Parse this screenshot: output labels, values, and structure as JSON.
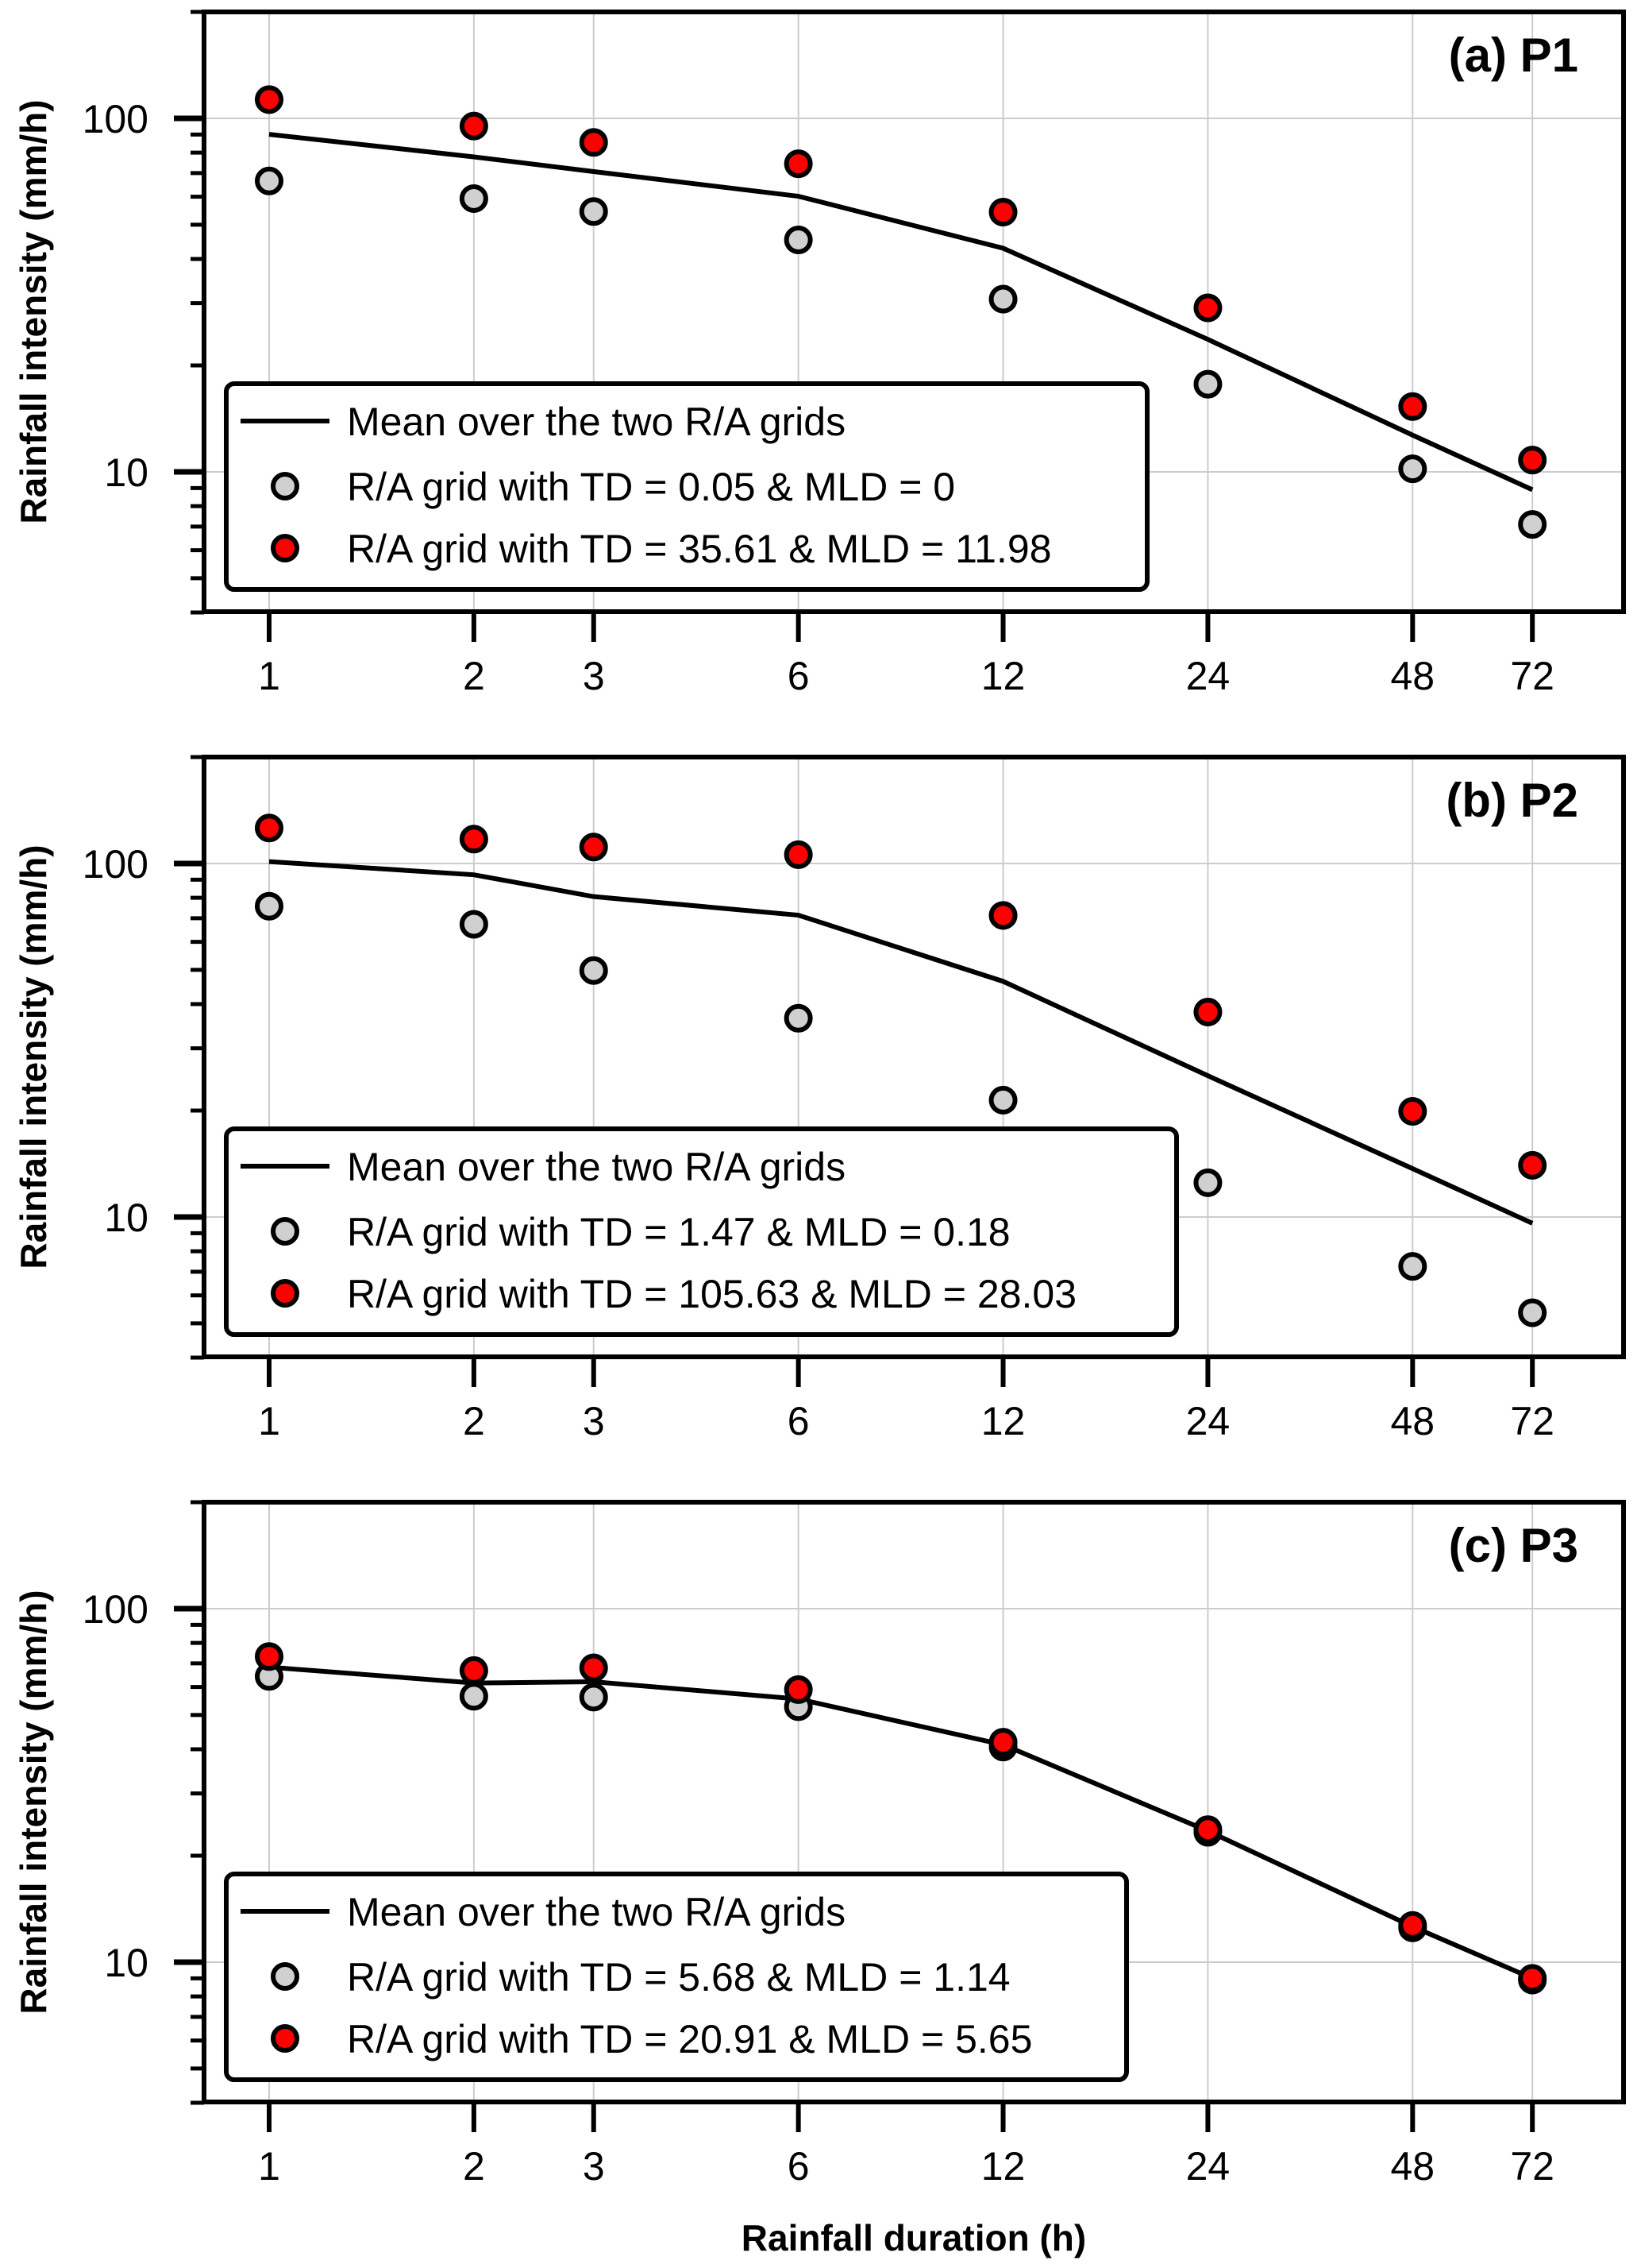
{
  "figure": {
    "xlabel": "Rainfall duration (h)",
    "ylabel": "Rainfall intensity (mm/h)"
  },
  "colors": {
    "mean_line": "#000000",
    "grey_marker": "#d0d0d0",
    "red_marker": "#ff0000",
    "marker_edge": "#000000",
    "grid": "#cccccc"
  },
  "chart_data": [
    {
      "type": "line+scatter",
      "title": "(a) P1",
      "xlabel": "",
      "ylabel": "Rainfall intensity (mm/h)",
      "xscale": "log",
      "yscale": "log",
      "x": [
        1,
        2,
        3,
        6,
        12,
        24,
        48,
        72
      ],
      "x_tick_labels": [
        "1",
        "2",
        "3",
        "6",
        "12",
        "24",
        "48",
        "72"
      ],
      "y_tick_labels": [
        "10",
        "100"
      ],
      "y_ticks": [
        10,
        100
      ],
      "ylim": [
        4,
        200
      ],
      "grid": true,
      "legend_position": "lower-left",
      "series": [
        {
          "name": "Mean over the two R/A grids",
          "kind": "line",
          "values": [
            90.1,
            77.8,
            70.7,
            60.2,
            42.9,
            23.7,
            12.7,
            8.9
          ]
        },
        {
          "name": "R/A grid with TD = 0.05 & MLD = 0",
          "kind": "scatter",
          "color": "grey",
          "values": [
            66.5,
            59.3,
            54.5,
            45.3,
            30.8,
            17.7,
            10.2,
            7.1
          ]
        },
        {
          "name": "R/A grid with TD = 35.61 & MLD = 11.98",
          "kind": "scatter",
          "color": "red",
          "values": [
            113,
            95.1,
            85.5,
            74.4,
            54.3,
            29.1,
            15.3,
            10.8
          ]
        }
      ]
    },
    {
      "type": "line+scatter",
      "title": "(b) P2",
      "xlabel": "",
      "ylabel": "Rainfall intensity (mm/h)",
      "xscale": "log",
      "yscale": "log",
      "x": [
        1,
        2,
        3,
        6,
        12,
        24,
        48,
        72
      ],
      "x_tick_labels": [
        "1",
        "2",
        "3",
        "6",
        "12",
        "24",
        "48",
        "72"
      ],
      "y_tick_labels": [
        "10",
        "100"
      ],
      "y_ticks": [
        10,
        100
      ],
      "ylim": [
        4,
        200
      ],
      "grid": true,
      "legend_position": "lower-left",
      "series": [
        {
          "name": "Mean over the two R/A grids",
          "kind": "line",
          "values": [
            101.2,
            92.9,
            80.6,
            71.4,
            46.4,
            25.1,
            13.7,
            9.6
          ]
        },
        {
          "name": "R/A grid with TD = 1.47 & MLD = 0.18",
          "kind": "scatter",
          "color": "grey",
          "values": [
            75.7,
            67.3,
            49.8,
            36.5,
            21.4,
            12.5,
            7.25,
            5.36
          ]
        },
        {
          "name": "R/A grid with TD = 105.63 & MLD = 28.03",
          "kind": "scatter",
          "color": "red",
          "values": [
            126,
            117.2,
            111.3,
            105.9,
            71.3,
            38.0,
            19.9,
            14.0
          ]
        }
      ]
    },
    {
      "type": "line+scatter",
      "title": "(c) P3",
      "xlabel": "Rainfall duration (h)",
      "ylabel": "Rainfall intensity (mm/h)",
      "xscale": "log",
      "yscale": "log",
      "x": [
        1,
        2,
        3,
        6,
        12,
        24,
        48,
        72
      ],
      "x_tick_labels": [
        "1",
        "2",
        "3",
        "6",
        "12",
        "24",
        "48",
        "72"
      ],
      "y_tick_labels": [
        "10",
        "100"
      ],
      "y_ticks": [
        10,
        100
      ],
      "ylim": [
        4,
        200
      ],
      "grid": true,
      "legend_position": "lower-left",
      "series": [
        {
          "name": "Mean over the two R/A grids",
          "kind": "line",
          "values": [
            68.3,
            61.6,
            62.1,
            55.5,
            41.2,
            23.5,
            12.6,
            9.0
          ]
        },
        {
          "name": "R/A grid with TD = 5.68 & MLD = 1.14",
          "kind": "scatter",
          "color": "grey",
          "values": [
            64.3,
            56.5,
            56.2,
            52.8,
            40.6,
            23.3,
            12.5,
            8.9
          ]
        },
        {
          "name": "R/A grid with TD = 20.91 & MLD = 5.65",
          "kind": "scatter",
          "color": "red",
          "values": [
            73.2,
            66.8,
            68.0,
            59.0,
            41.9,
            23.7,
            12.7,
            9.0
          ]
        }
      ]
    }
  ]
}
